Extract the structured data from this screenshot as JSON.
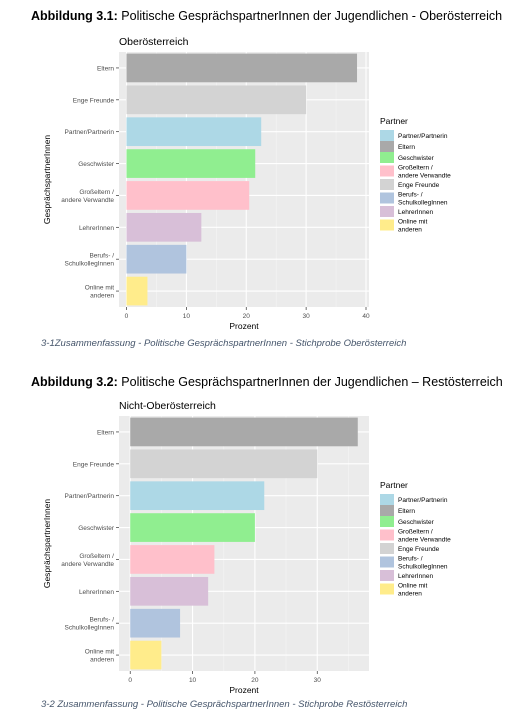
{
  "figures": [
    {
      "heading_label": "Abbildung 3.1:",
      "heading_text": " Politische GesprächspartnerInnen der Jugendlichen - Oberösterreich",
      "caption": "3-1Zusammenfassung - Politische GesprächspartnerInnen - Stichprobe Oberösterreich"
    },
    {
      "heading_label": "Abbildung 3.2:",
      "heading_text": " Politische GesprächspartnerInnen der Jugendlichen – Restösterreich",
      "caption": "3-2 Zusammenfassung - Politische GesprächspartnerInnen - Stichprobe Restösterreich"
    }
  ],
  "chart_data": [
    {
      "type": "bar",
      "orientation": "horizontal",
      "title": "Oberösterreich",
      "xlabel": "Prozent",
      "ylabel": "GesprächspartnerInnen",
      "categories": [
        "Eltern",
        "Enge Freunde",
        "Partner/Partnerin",
        "Geschwister",
        "Großeltern / andere Verwandte",
        "LehrerInnen",
        "Berufs- / SchulkollegInnen",
        "Online mit anderen"
      ],
      "tick_labels": [
        [
          "Eltern"
        ],
        [
          "Enge Freunde"
        ],
        [
          "Partner/Partnerin"
        ],
        [
          "Geschwister"
        ],
        [
          "Großeltern /",
          "andere Verwandte"
        ],
        [
          "LehrerInnen"
        ],
        [
          "Berufs- /",
          "SchulkollegInnen"
        ],
        [
          "Online mit",
          "anderen"
        ]
      ],
      "values": [
        38.5,
        30,
        22.5,
        21.5,
        20.5,
        12.5,
        10,
        3.5
      ],
      "xlim": [
        -1.25,
        40.5
      ],
      "xticks": [
        0,
        10,
        20,
        30,
        40
      ],
      "grid": true,
      "legend": {
        "title": "Partner",
        "position": "right",
        "items": [
          [
            "Partner/Partnerin"
          ],
          [
            "Eltern"
          ],
          [
            "Geschwister"
          ],
          [
            "Großeltern /",
            "andere Verwandte"
          ],
          [
            "Enge Freunde"
          ],
          [
            "Berufs- /",
            "SchulkollegInnen"
          ],
          [
            "LehrerInnen"
          ],
          [
            "Online mit",
            "anderen"
          ]
        ]
      }
    },
    {
      "type": "bar",
      "orientation": "horizontal",
      "title": "Nicht-Oberösterreich",
      "xlabel": "Prozent",
      "ylabel": "GesprächspartnerInnen",
      "categories": [
        "Eltern",
        "Enge Freunde",
        "Partner/Partnerin",
        "Geschwister",
        "Großeltern / andere Verwandte",
        "LehrerInnen",
        "Berufs- / SchulkollegInnen",
        "Online mit anderen"
      ],
      "tick_labels": [
        [
          "Eltern"
        ],
        [
          "Enge Freunde"
        ],
        [
          "Partner/Partnerin"
        ],
        [
          "Geschwister"
        ],
        [
          "Großeltern /",
          "andere Verwandte"
        ],
        [
          "LehrerInnen"
        ],
        [
          "Berufs- /",
          "SchulkollegInnen"
        ],
        [
          "Online mit",
          "anderen"
        ]
      ],
      "values": [
        36.5,
        30,
        21.5,
        20,
        13.5,
        12.5,
        8,
        5
      ],
      "xlim": [
        -1.8,
        38.3
      ],
      "xticks": [
        0,
        10,
        20,
        30
      ],
      "grid": true,
      "legend": {
        "title": "Partner",
        "position": "right",
        "items": [
          [
            "Partner/Partnerin"
          ],
          [
            "Eltern"
          ],
          [
            "Geschwister"
          ],
          [
            "Großeltern /",
            "andere Verwandte"
          ],
          [
            "Enge Freunde"
          ],
          [
            "Berufs- /",
            "SchulkollegInnen"
          ],
          [
            "LehrerInnen"
          ],
          [
            "Online mit",
            "anderen"
          ]
        ]
      }
    }
  ],
  "colors": {
    "Eltern": "#a9a9a9",
    "Enge Freunde": "#d3d3d3",
    "Partner/Partnerin": "#add8e6",
    "Geschwister": "#90ee90",
    "Großeltern / andere Verwandte": "#ffc0cb",
    "LehrerInnen": "#d8bfd8",
    "Berufs- / SchulkollegInnen": "#b0c4de",
    "Online mit anderen": "#ffec8b",
    "panel": "#ebebeb",
    "grid_major": "#ffffff",
    "grid_minor": "#f5f5f5",
    "caption": "#44546a"
  }
}
